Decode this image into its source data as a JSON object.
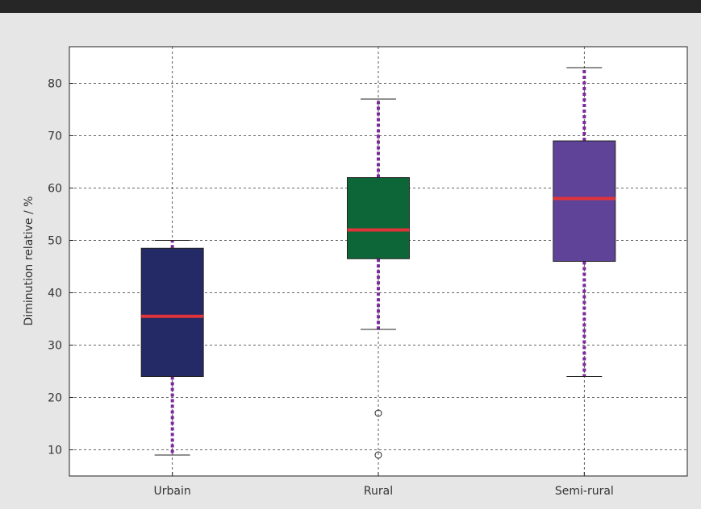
{
  "chart_data": {
    "type": "box",
    "ylabel": "Diminution relative / %",
    "xlabel": "",
    "ylim": [
      5,
      87
    ],
    "yticks": [
      10,
      20,
      30,
      40,
      50,
      60,
      70,
      80
    ],
    "grid": true,
    "categories": [
      "Urbain",
      "Rural",
      "Semi-rural"
    ],
    "boxes": [
      {
        "category": "Urbain",
        "whisker_low": 9,
        "q1": 24,
        "median": 35.5,
        "q3": 48.5,
        "whisker_high": 50,
        "outliers": [],
        "color": "#232a66"
      },
      {
        "category": "Rural",
        "whisker_low": 33,
        "q1": 46.5,
        "median": 52,
        "q3": 62,
        "whisker_high": 77,
        "outliers": [
          17,
          9
        ],
        "color": "#0d6637"
      },
      {
        "category": "Semi-rural",
        "whisker_low": 24,
        "q1": 46,
        "median": 58,
        "q3": 69,
        "whisker_high": 83,
        "outliers": [],
        "color": "#5f4399"
      }
    ],
    "median_color": "#e0343a",
    "whisker_color": "#7b2a99"
  }
}
